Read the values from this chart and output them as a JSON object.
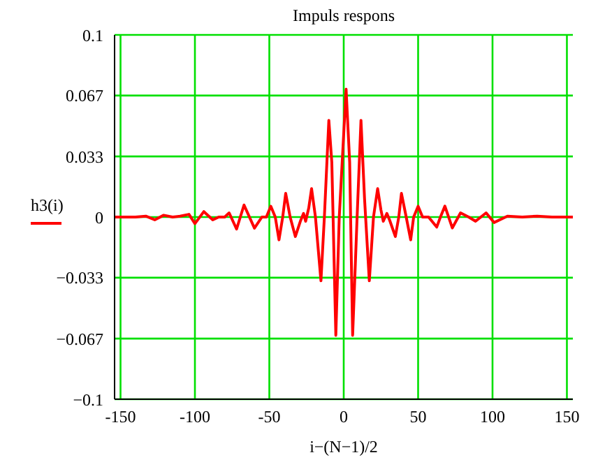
{
  "chart_data": {
    "type": "line",
    "title": "Impuls respons",
    "xlabel": "i−(N−1)/2",
    "ylabel": "h3(i)",
    "series": [
      {
        "color": "#ff0000",
        "x": [
          -154,
          -140,
          -133,
          -127,
          -121,
          -115,
          -110,
          -104,
          -100,
          -94,
          -88,
          -84,
          -80,
          -77,
          -72,
          -67,
          -60,
          -55,
          -52,
          -49,
          -46,
          -43.5,
          -41,
          -39,
          -36,
          -32.5,
          -29,
          -27,
          -25.6,
          -23.5,
          -21.6,
          -19,
          -15.3,
          -13,
          -10,
          -8,
          -5.3,
          -3,
          1.6,
          4,
          6,
          9,
          11.6,
          14,
          17.2,
          20,
          22.8,
          25,
          26.6,
          29,
          31,
          34.7,
          37,
          38.8,
          42,
          45,
          47,
          50,
          53,
          57,
          62.5,
          65,
          68,
          73,
          78.5,
          84,
          88.6,
          95.7,
          101,
          110,
          120,
          130,
          140,
          154
        ],
        "values": [
          0,
          0,
          0.0005,
          -0.0015,
          0.001,
          0,
          0.0005,
          0.0015,
          -0.0036,
          0.003,
          -0.0015,
          0,
          0,
          0.0023,
          -0.0066,
          0.0066,
          -0.0061,
          0,
          0,
          0.0059,
          0,
          -0.0125,
          0,
          0.013,
          0,
          -0.0107,
          -0.002,
          0.002,
          -0.0023,
          0.005,
          0.0156,
          0,
          -0.035,
          0,
          0.0531,
          0.03,
          -0.0649,
          0,
          0.0702,
          0.03,
          -0.0649,
          0,
          0.0531,
          0.01,
          -0.035,
          0,
          0.0156,
          0.004,
          -0.0023,
          0.002,
          -0.002,
          -0.0107,
          0,
          0.013,
          0,
          -0.0125,
          0,
          0.0059,
          0,
          0,
          -0.0055,
          0,
          0.006,
          -0.006,
          0.0023,
          0,
          -0.0023,
          0.0023,
          -0.003,
          0.0005,
          0,
          0.0005,
          0,
          0
        ]
      }
    ],
    "xlim": [
      -154,
      154
    ],
    "xticks": [
      -150,
      -100,
      -50,
      0,
      50,
      100,
      150
    ],
    "ylim": [
      -0.1,
      0.1
    ],
    "yticks": [
      {
        "value": -0.1,
        "label": "−0.1"
      },
      {
        "value": -0.0667,
        "label": "−0.067"
      },
      {
        "value": -0.0333,
        "label": "−0.033"
      },
      0,
      {
        "value": 0.0333,
        "label": "0.033"
      },
      {
        "value": 0.0667,
        "label": "0.067"
      },
      0.1
    ],
    "grid": true,
    "marker": "none",
    "line_style": "solid"
  }
}
